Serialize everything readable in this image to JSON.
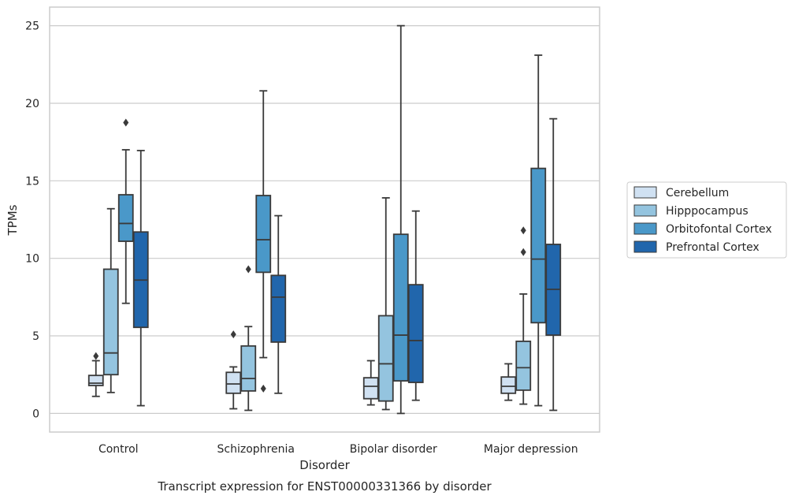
{
  "chart_data": {
    "type": "box",
    "title": "",
    "xlabel": "Disorder",
    "ylabel": "TPMs",
    "caption": "Transcript expression for ENST00000331366 by disorder",
    "ylim": [
      -1.2,
      26.2
    ],
    "yticks": [
      0,
      5,
      10,
      15,
      20,
      25
    ],
    "grid": true,
    "legend_position": "right",
    "categories": [
      "Control",
      "Schizophrenia",
      "Bipolar disorder",
      "Major depression"
    ],
    "series": [
      {
        "name": "Cerebellum",
        "color": "#d0e1f2",
        "boxes": [
          {
            "whislo": 1.1,
            "q1": 1.8,
            "med": 1.95,
            "q3": 2.45,
            "whishi": 3.4,
            "fliers": [
              3.7
            ]
          },
          {
            "whislo": 0.3,
            "q1": 1.3,
            "med": 1.9,
            "q3": 2.65,
            "whishi": 3.0,
            "fliers": [
              5.1
            ]
          },
          {
            "whislo": 0.55,
            "q1": 0.95,
            "med": 1.75,
            "q3": 2.3,
            "whishi": 3.4,
            "fliers": []
          },
          {
            "whislo": 0.85,
            "q1": 1.3,
            "med": 1.75,
            "q3": 2.35,
            "whishi": 3.2,
            "fliers": []
          }
        ]
      },
      {
        "name": "Hipppocampus",
        "color": "#94c4df",
        "boxes": [
          {
            "whislo": 1.35,
            "q1": 2.5,
            "med": 3.9,
            "q3": 9.3,
            "whishi": 13.2,
            "fliers": []
          },
          {
            "whislo": 0.2,
            "q1": 1.45,
            "med": 2.25,
            "q3": 4.35,
            "whishi": 5.6,
            "fliers": [
              9.3
            ]
          },
          {
            "whislo": 0.25,
            "q1": 0.8,
            "med": 3.2,
            "q3": 6.3,
            "whishi": 13.9,
            "fliers": []
          },
          {
            "whislo": 0.6,
            "q1": 1.5,
            "med": 2.95,
            "q3": 4.65,
            "whishi": 7.7,
            "fliers": [
              10.4,
              11.8
            ]
          }
        ]
      },
      {
        "name": "Orbitofontal Cortex",
        "color": "#4a98c9",
        "boxes": [
          {
            "whislo": 7.1,
            "q1": 11.1,
            "med": 12.25,
            "q3": 14.1,
            "whishi": 17.0,
            "fliers": [
              18.75
            ]
          },
          {
            "whislo": 3.6,
            "q1": 9.1,
            "med": 11.2,
            "q3": 14.05,
            "whishi": 20.8,
            "fliers": [
              1.6
            ]
          },
          {
            "whislo": 0.0,
            "q1": 2.1,
            "med": 5.05,
            "q3": 11.55,
            "whishi": 25.0,
            "fliers": []
          },
          {
            "whislo": 0.5,
            "q1": 5.85,
            "med": 9.95,
            "q3": 15.8,
            "whishi": 23.1,
            "fliers": []
          }
        ]
      },
      {
        "name": "Prefrontal Cortex",
        "color": "#2166ac",
        "boxes": [
          {
            "whislo": 0.5,
            "q1": 5.55,
            "med": 8.6,
            "q3": 11.7,
            "whishi": 16.95,
            "fliers": []
          },
          {
            "whislo": 1.3,
            "q1": 4.6,
            "med": 7.5,
            "q3": 8.9,
            "whishi": 12.75,
            "fliers": []
          },
          {
            "whislo": 0.85,
            "q1": 2.0,
            "med": 4.7,
            "q3": 8.3,
            "whishi": 13.05,
            "fliers": []
          },
          {
            "whislo": 0.2,
            "q1": 5.05,
            "med": 8.0,
            "q3": 10.9,
            "whishi": 19.0,
            "fliers": []
          }
        ]
      }
    ]
  },
  "colors": {
    "grid": "#cccccc",
    "frame": "#cccccc",
    "line": "#3a3a3a"
  }
}
